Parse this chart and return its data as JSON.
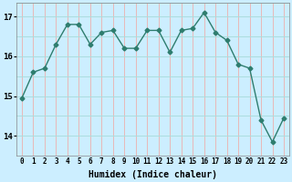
{
  "x": [
    0,
    1,
    2,
    3,
    4,
    5,
    6,
    7,
    8,
    9,
    10,
    11,
    12,
    13,
    14,
    15,
    16,
    17,
    18,
    19,
    20,
    21,
    22,
    23
  ],
  "y": [
    14.95,
    15.6,
    15.7,
    16.3,
    16.8,
    16.8,
    16.3,
    16.6,
    16.65,
    16.2,
    16.2,
    16.65,
    16.65,
    16.1,
    16.65,
    16.7,
    17.1,
    16.6,
    16.4,
    15.8,
    15.7,
    14.4,
    13.85,
    14.45
  ],
  "line_color": "#2e7d6e",
  "marker": "D",
  "markersize": 2.5,
  "linewidth": 1.0,
  "bg_color": "#cceeff",
  "grid_color_v": "#e8b8b8",
  "grid_color_h": "#aadddd",
  "xlabel": "Humidex (Indice chaleur)",
  "ylim": [
    13.5,
    17.35
  ],
  "xlim": [
    -0.5,
    23.5
  ],
  "yticks": [
    14,
    15,
    16,
    17
  ],
  "xtick_labels": [
    "0",
    "1",
    "2",
    "3",
    "4",
    "5",
    "6",
    "7",
    "8",
    "9",
    "10",
    "11",
    "12",
    "13",
    "14",
    "15",
    "16",
    "17",
    "18",
    "19",
    "20",
    "21",
    "22",
    "23"
  ]
}
